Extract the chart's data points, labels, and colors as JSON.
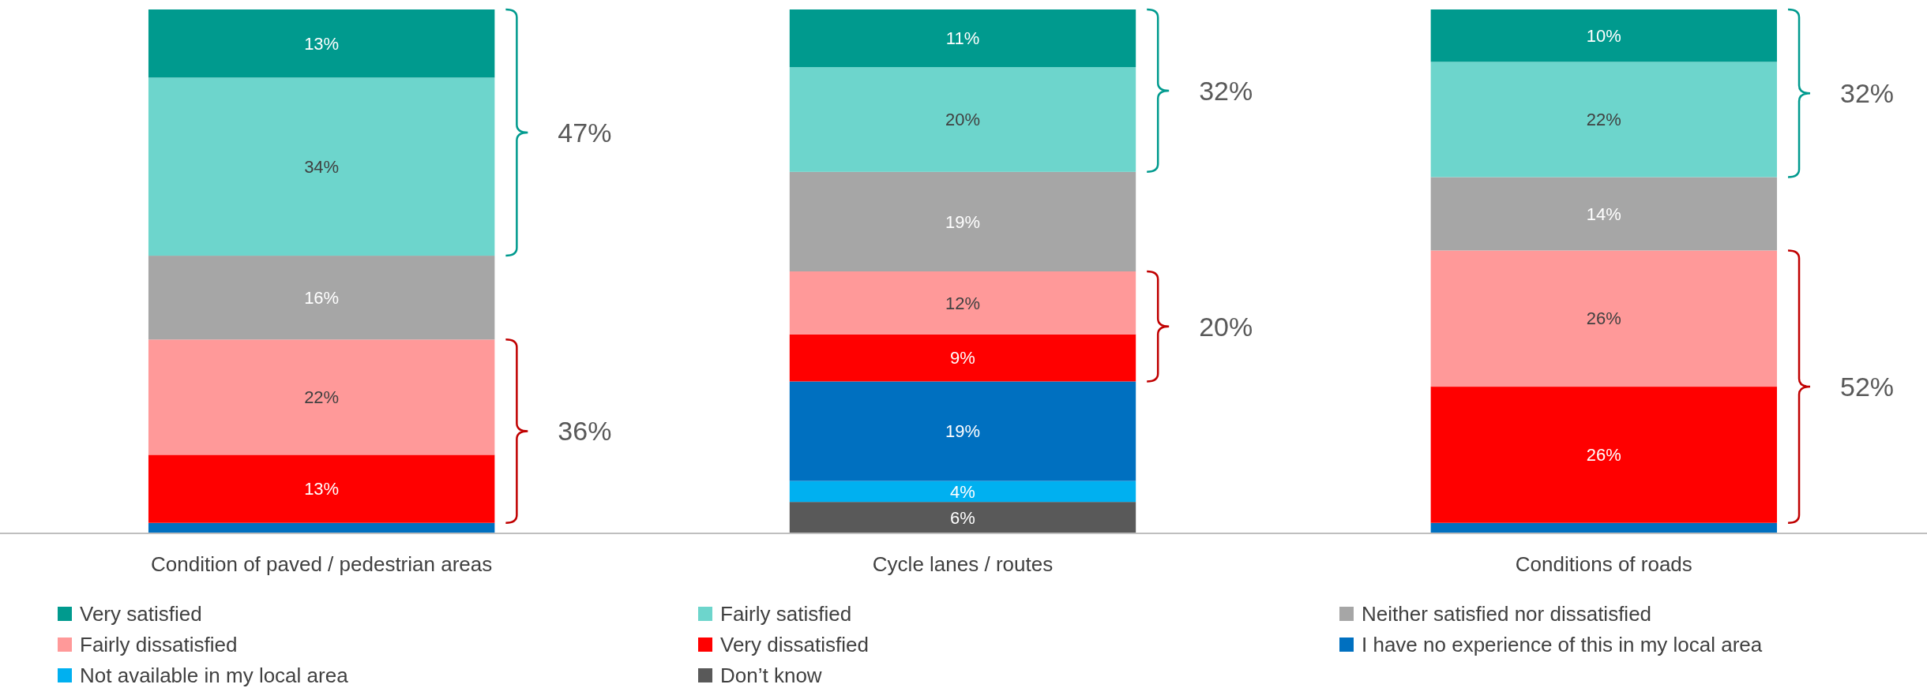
{
  "chart_data": {
    "type": "bar",
    "stacked": true,
    "legend": "bottom",
    "categories": [
      "Condition of paved / pedestrian areas",
      "Cycle lanes / routes",
      "Conditions of roads"
    ],
    "series": [
      {
        "name": "Don’t know",
        "color": "#595959",
        "values": [
          null,
          6,
          null
        ],
        "value_labels": [
          null,
          "6%",
          null
        ]
      },
      {
        "name": "Not available in my local area",
        "color": "#00b0f0",
        "values": [
          null,
          4,
          null
        ],
        "value_labels": [
          null,
          "4%",
          null
        ]
      },
      {
        "name": "I have no experience of this in my local area",
        "color": "#0070c0",
        "values": [
          2,
          19,
          2
        ],
        "value_labels": [
          null,
          "19%",
          null
        ]
      },
      {
        "name": "Very dissatisfied",
        "color": "#ff0000",
        "values": [
          13,
          9,
          26
        ],
        "value_labels": [
          "13%",
          "9%",
          "26%"
        ]
      },
      {
        "name": "Fairly dissatisfied",
        "color": "#ff9999",
        "values": [
          22,
          12,
          26
        ],
        "value_labels": [
          "22%",
          "12%",
          "26%"
        ]
      },
      {
        "name": "Neither satisfied nor dissatisfied",
        "color": "#a6a6a6",
        "values": [
          16,
          19,
          14
        ],
        "value_labels": [
          "16%",
          "19%",
          "14%"
        ]
      },
      {
        "name": "Fairly satisfied",
        "color": "#6dd5cc",
        "values": [
          34,
          20,
          22
        ],
        "value_labels": [
          "34%",
          "20%",
          "22%"
        ]
      },
      {
        "name": "Very satisfied",
        "color": "#009a8e",
        "values": [
          13,
          11,
          10
        ],
        "value_labels": [
          "13%",
          "11%",
          "10%"
        ]
      }
    ],
    "annotations": [
      "47%",
      "36%",
      "32%",
      "20%",
      "32%",
      "52%"
    ]
  }
}
